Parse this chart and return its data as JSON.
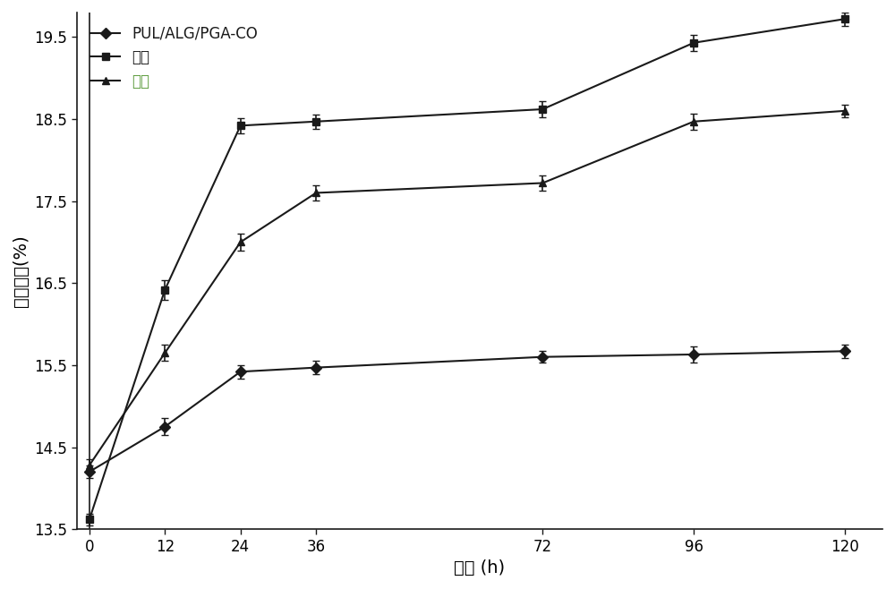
{
  "x": [
    0,
    12,
    24,
    36,
    72,
    96,
    120
  ],
  "series": [
    {
      "label": "PUL/ALG/PGA-CO",
      "marker": "D",
      "y": [
        14.2,
        14.75,
        15.42,
        15.47,
        15.6,
        15.63,
        15.67
      ],
      "yerr": [
        0.08,
        0.1,
        0.08,
        0.08,
        0.07,
        0.1,
        0.08
      ],
      "color": "#1a1a1a",
      "markersize": 6
    },
    {
      "label": "甘油",
      "marker": "s",
      "y": [
        13.62,
        16.42,
        18.42,
        18.47,
        18.62,
        19.43,
        19.72
      ],
      "yerr": [
        0.07,
        0.12,
        0.09,
        0.09,
        0.1,
        0.1,
        0.08
      ],
      "color": "#1a1a1a",
      "markersize": 6
    },
    {
      "label": "对照",
      "marker": "^",
      "y": [
        14.28,
        15.65,
        17.0,
        17.6,
        17.72,
        18.47,
        18.6
      ],
      "yerr": [
        0.07,
        0.1,
        0.1,
        0.09,
        0.09,
        0.1,
        0.08
      ],
      "color": "#1a1a1a",
      "markersize": 6
    }
  ],
  "xlabel": "时间 (h)",
  "ylabel": "水分含量(%)",
  "ylim": [
    13.5,
    19.8
  ],
  "yticks": [
    13.5,
    14.5,
    15.5,
    16.5,
    17.5,
    18.5,
    19.5
  ],
  "xticks": [
    0,
    12,
    24,
    36,
    72,
    96,
    120
  ],
  "legend_label_colors": [
    "#1a1a1a",
    "#1a1a1a",
    "#5a9a3a"
  ],
  "background_color": "#ffffff",
  "line_width": 1.5
}
